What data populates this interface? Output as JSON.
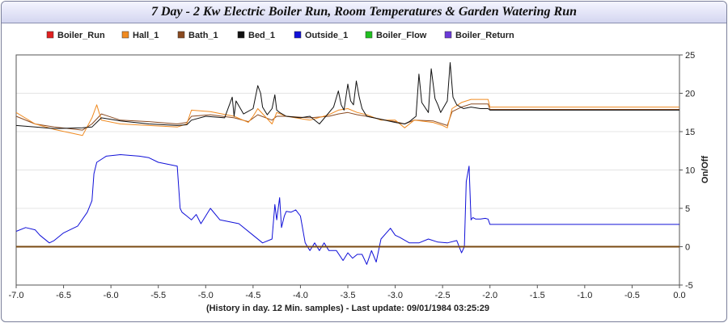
{
  "chart_data": {
    "type": "line",
    "title": "7 Day - 2 Kw Electric Boiler Run, Room Temperatures & Garden Watering Run",
    "xlabel": "(History in day. 12 Min. samples) - Last update: 09/01/1984 03:25:29",
    "ylabel": "On/Off",
    "xlim": [
      -7.0,
      0.0
    ],
    "ylim": [
      -5,
      25
    ],
    "x_ticks": [
      "-7.0",
      "-6.5",
      "-6.0",
      "-5.5",
      "-5.0",
      "-4.5",
      "-4.0",
      "-3.5",
      "-3.0",
      "-2.5",
      "-2.0",
      "-1.5",
      "-1.0",
      "-0.5",
      "0.0"
    ],
    "y_ticks": [
      "25",
      "20",
      "15",
      "10",
      "5",
      "0",
      "-5"
    ],
    "y_axis_side": "right",
    "grid": "horizontal",
    "legend_position": "top",
    "series": [
      {
        "name": "Boiler_Run",
        "color": "#e02020",
        "x": [
          -7.0,
          0.0
        ],
        "y": [
          0,
          0
        ]
      },
      {
        "name": "Hall_1",
        "color": "#f08a20",
        "x": [
          -7.0,
          -6.8,
          -6.6,
          -6.3,
          -6.2,
          -6.15,
          -6.1,
          -5.9,
          -5.6,
          -5.3,
          -5.2,
          -5.15,
          -4.95,
          -4.7,
          -4.55,
          -4.5,
          -4.45,
          -4.3,
          -4.25,
          -4.15,
          -3.9,
          -3.7,
          -3.6,
          -3.5,
          -3.4,
          -3.3,
          -3.15,
          -3.0,
          -2.9,
          -2.8,
          -2.6,
          -2.5,
          -2.45,
          -2.4,
          -2.3,
          -2.2,
          -2.1,
          -2.02,
          -2.0,
          0.0
        ],
        "y": [
          17.5,
          16.0,
          15.3,
          14.5,
          16.8,
          18.5,
          16.5,
          16.0,
          15.8,
          15.6,
          16.0,
          17.8,
          17.6,
          17.0,
          16.2,
          17.0,
          18.0,
          16.0,
          17.5,
          17.0,
          16.5,
          17.2,
          17.8,
          18.0,
          17.5,
          17.2,
          16.5,
          16.5,
          15.5,
          16.5,
          16.2,
          15.8,
          15.5,
          18.0,
          18.8,
          19.2,
          19.2,
          19.2,
          18.2,
          18.2
        ]
      },
      {
        "name": "Bath_1",
        "color": "#8a4a20",
        "x": [
          -7.0,
          -6.8,
          -6.6,
          -6.3,
          -6.2,
          -6.1,
          -5.9,
          -5.6,
          -5.3,
          -5.2,
          -5.15,
          -4.95,
          -4.7,
          -4.55,
          -4.45,
          -4.3,
          -4.25,
          -4.15,
          -3.9,
          -3.7,
          -3.6,
          -3.5,
          -3.4,
          -3.3,
          -3.15,
          -3.0,
          -2.9,
          -2.8,
          -2.6,
          -2.5,
          -2.45,
          -2.4,
          -2.3,
          -2.2,
          -2.1,
          -2.02,
          -2.0,
          0.0
        ],
        "y": [
          17.0,
          16.0,
          15.6,
          15.2,
          16.0,
          17.3,
          16.5,
          16.3,
          16.0,
          16.2,
          17.0,
          17.2,
          16.8,
          16.3,
          17.2,
          16.5,
          17.0,
          17.0,
          16.8,
          17.0,
          17.3,
          17.5,
          17.2,
          17.0,
          16.6,
          16.3,
          16.0,
          16.5,
          16.4,
          16.0,
          15.8,
          17.6,
          18.2,
          18.6,
          18.6,
          18.6,
          17.9,
          17.9
        ]
      },
      {
        "name": "Bed_1",
        "color": "#111111",
        "x": [
          -7.0,
          -6.8,
          -6.6,
          -6.3,
          -6.2,
          -6.1,
          -5.9,
          -5.6,
          -5.3,
          -5.2,
          -5.15,
          -5.0,
          -4.8,
          -4.72,
          -4.7,
          -4.68,
          -4.6,
          -4.5,
          -4.45,
          -4.42,
          -4.4,
          -4.35,
          -4.3,
          -4.27,
          -4.25,
          -4.22,
          -4.15,
          -4.0,
          -3.9,
          -3.8,
          -3.65,
          -3.6,
          -3.57,
          -3.54,
          -3.5,
          -3.47,
          -3.44,
          -3.41,
          -3.38,
          -3.35,
          -3.3,
          -3.15,
          -3.0,
          -2.9,
          -2.85,
          -2.78,
          -2.75,
          -2.72,
          -2.65,
          -2.62,
          -2.58,
          -2.55,
          -2.52,
          -2.45,
          -2.42,
          -2.39,
          -2.35,
          -2.28,
          -2.2,
          -2.1,
          -2.02,
          -2.0,
          0.0
        ],
        "y": [
          15.8,
          15.6,
          15.4,
          15.5,
          15.6,
          16.8,
          16.4,
          16.0,
          15.8,
          15.9,
          16.5,
          17.0,
          16.8,
          19.5,
          17.0,
          19.0,
          17.3,
          18.0,
          21.0,
          20.0,
          18.2,
          17.2,
          18.0,
          19.8,
          17.8,
          17.5,
          17.0,
          16.8,
          17.0,
          16.0,
          18.2,
          20.3,
          18.5,
          17.8,
          21.2,
          19.0,
          18.5,
          21.6,
          19.5,
          18.0,
          17.0,
          16.6,
          16.2,
          16.0,
          16.3,
          17.0,
          22.5,
          18.8,
          17.5,
          23.2,
          19.3,
          18.5,
          17.5,
          19.0,
          24.0,
          19.5,
          18.5,
          18.0,
          18.2,
          18.0,
          18.0,
          17.8,
          17.8
        ]
      },
      {
        "name": "Outside_1",
        "color": "#1010d8",
        "x": [
          -7.0,
          -6.9,
          -6.8,
          -6.75,
          -6.65,
          -6.6,
          -6.5,
          -6.35,
          -6.25,
          -6.2,
          -6.18,
          -6.15,
          -6.05,
          -5.9,
          -5.7,
          -5.6,
          -5.5,
          -5.3,
          -5.27,
          -5.25,
          -5.2,
          -5.15,
          -5.1,
          -5.05,
          -4.95,
          -4.85,
          -4.65,
          -4.5,
          -4.4,
          -4.3,
          -4.27,
          -4.25,
          -4.22,
          -4.2,
          -4.17,
          -4.15,
          -4.1,
          -4.05,
          -4.0,
          -3.95,
          -3.9,
          -3.85,
          -3.8,
          -3.75,
          -3.7,
          -3.62,
          -3.55,
          -3.5,
          -3.45,
          -3.4,
          -3.35,
          -3.3,
          -3.25,
          -3.2,
          -3.15,
          -3.05,
          -3.0,
          -2.95,
          -2.85,
          -2.75,
          -2.65,
          -2.55,
          -2.45,
          -2.35,
          -2.3,
          -2.27,
          -2.25,
          -2.22,
          -2.2,
          -2.18,
          -2.15,
          -2.1,
          -2.05,
          -2.02,
          -2.0,
          0.0
        ],
        "y": [
          2.0,
          2.5,
          2.2,
          1.5,
          0.5,
          0.8,
          1.8,
          2.7,
          4.5,
          6.0,
          9.5,
          11.0,
          11.8,
          12.0,
          11.8,
          11.6,
          11.0,
          10.5,
          5.0,
          4.5,
          4.0,
          3.5,
          4.2,
          3.0,
          5.0,
          3.5,
          3.0,
          1.5,
          0.5,
          1.0,
          5.5,
          3.5,
          6.4,
          2.5,
          4.0,
          4.6,
          4.5,
          4.8,
          4.0,
          0.5,
          -0.5,
          0.5,
          -0.5,
          0.5,
          -0.5,
          -0.5,
          -1.8,
          -0.8,
          -1.5,
          -1.0,
          -1.0,
          -2.3,
          -0.5,
          -2.0,
          1.0,
          2.4,
          1.5,
          1.2,
          0.5,
          0.5,
          1.0,
          0.6,
          0.5,
          0.8,
          -0.8,
          0.0,
          8.5,
          10.5,
          3.5,
          3.8,
          3.6,
          3.6,
          3.7,
          3.6,
          2.9,
          2.9
        ]
      },
      {
        "name": "Boiler_Flow",
        "color": "#20c020",
        "x": [
          -7.0,
          0.0
        ],
        "y": [
          0,
          0
        ]
      },
      {
        "name": "Boiler_Return",
        "color": "#6a3ad8",
        "x": [
          -7.0,
          0.0
        ],
        "y": [
          0,
          0
        ]
      }
    ]
  }
}
